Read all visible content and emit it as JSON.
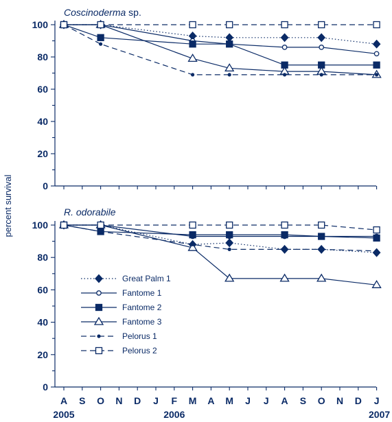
{
  "colors": {
    "ink": "#0a2a66"
  },
  "chart_data": [
    {
      "type": "line",
      "title_italic": "Coscinoderma",
      "title_rest": " sp.",
      "categories": [
        "A",
        "S",
        "O",
        "N",
        "D",
        "J",
        "F",
        "M",
        "A",
        "M",
        "J",
        "J",
        "A",
        "S",
        "O",
        "N",
        "D",
        "J"
      ],
      "year_labels": [
        {
          "label": "2005",
          "index": 0
        },
        {
          "label": "2006",
          "index": 6
        },
        {
          "label": "2007",
          "index": 17
        }
      ],
      "ylabel": "percent survival",
      "ylim": [
        0,
        100
      ],
      "yticks": [
        "0",
        "20",
        "40",
        "60",
        "80",
        "100"
      ],
      "series": [
        {
          "name": "Great Palm 1",
          "style": "dotted",
          "marker": "diamond-filled",
          "x": [
            0,
            2,
            7,
            9,
            12,
            14,
            17
          ],
          "values": [
            100,
            100,
            93,
            92,
            92,
            92,
            88
          ]
        },
        {
          "name": "Fantome 1",
          "style": "solid",
          "marker": "circle-open",
          "x": [
            0,
            2,
            7,
            9,
            12,
            14,
            17
          ],
          "values": [
            100,
            100,
            90,
            88,
            86,
            86,
            82
          ]
        },
        {
          "name": "Fantome 2",
          "style": "solid",
          "marker": "square-filled",
          "x": [
            0,
            2,
            7,
            9,
            12,
            14,
            17
          ],
          "values": [
            100,
            92,
            88,
            88,
            75,
            75,
            75
          ]
        },
        {
          "name": "Fantome 3",
          "style": "solid",
          "marker": "triangle-open",
          "x": [
            0,
            2,
            7,
            9,
            12,
            14,
            17
          ],
          "values": [
            100,
            100,
            79,
            73,
            71,
            71,
            69
          ]
        },
        {
          "name": "Pelorus 1",
          "style": "dashed",
          "marker": "dot-filled",
          "x": [
            0,
            2,
            7,
            9,
            12,
            14,
            17
          ],
          "values": [
            100,
            88,
            69,
            69,
            69,
            69,
            69
          ]
        },
        {
          "name": "Pelorus 2",
          "style": "dashed",
          "marker": "square-open",
          "x": [
            0,
            2,
            7,
            9,
            12,
            14,
            17
          ],
          "values": [
            100,
            100,
            100,
            100,
            100,
            100,
            100
          ]
        }
      ]
    },
    {
      "type": "line",
      "title_italic": "R. odorabile",
      "title_rest": "",
      "categories": [
        "A",
        "S",
        "O",
        "N",
        "D",
        "J",
        "F",
        "M",
        "A",
        "M",
        "J",
        "J",
        "A",
        "S",
        "O",
        "N",
        "D",
        "J"
      ],
      "ylim": [
        0,
        100
      ],
      "yticks": [
        "0",
        "20",
        "40",
        "60",
        "80",
        "100"
      ],
      "series": [
        {
          "name": "Great Palm 1",
          "style": "dotted",
          "marker": "diamond-filled",
          "x": [
            0,
            2,
            7,
            9,
            12,
            14,
            17
          ],
          "values": [
            100,
            100,
            88,
            89,
            85,
            85,
            83
          ]
        },
        {
          "name": "Fantome 1",
          "style": "solid",
          "marker": "circle-open",
          "x": [
            0,
            2,
            7,
            9,
            12,
            14,
            17
          ],
          "values": [
            100,
            100,
            93,
            93,
            93,
            93,
            93
          ]
        },
        {
          "name": "Fantome 2",
          "style": "solid",
          "marker": "square-filled",
          "x": [
            0,
            2,
            7,
            9,
            12,
            14,
            17
          ],
          "values": [
            100,
            96,
            94,
            94,
            94,
            93,
            92
          ]
        },
        {
          "name": "Fantome 3",
          "style": "solid",
          "marker": "triangle-open",
          "x": [
            0,
            2,
            7,
            9,
            12,
            14,
            17
          ],
          "values": [
            100,
            100,
            86,
            67,
            67,
            67,
            63
          ]
        },
        {
          "name": "Pelorus 1",
          "style": "dashed",
          "marker": "dot-filled",
          "x": [
            0,
            2,
            7,
            9,
            12,
            14,
            17
          ],
          "values": [
            100,
            96,
            88,
            85,
            85,
            85,
            84
          ]
        },
        {
          "name": "Pelorus 2",
          "style": "dashed",
          "marker": "square-open",
          "x": [
            0,
            2,
            7,
            9,
            12,
            14,
            17
          ],
          "values": [
            100,
            100,
            100,
            100,
            100,
            100,
            97
          ]
        }
      ],
      "legend": {
        "placement": "lower-left",
        "entries": [
          "Great Palm 1",
          "Fantome 1",
          "Fantome 2",
          "Fantome 3",
          "Pelorus 1",
          "Pelorus 2"
        ]
      }
    }
  ]
}
